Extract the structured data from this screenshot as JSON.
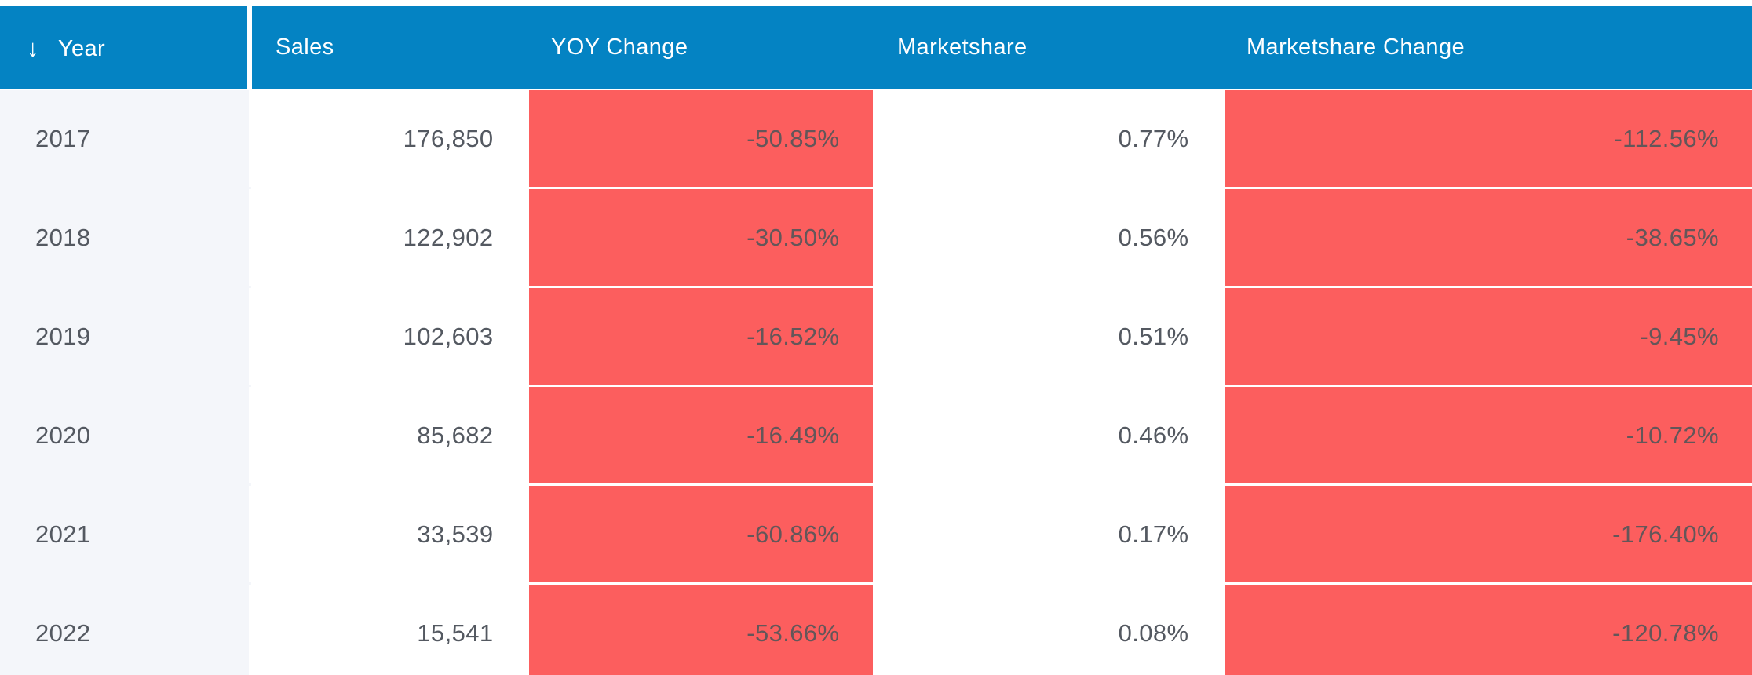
{
  "colors": {
    "header_bg": "#0483c3",
    "header_text": "#ffffff",
    "negative_cell_bg": "#fc5e5e",
    "year_column_bg": "#f4f6fa",
    "body_text": "#545961",
    "bottom_strip": "#e9ebee"
  },
  "table": {
    "sort_icon": "↓",
    "sorted_column": "Year",
    "sort_direction": "descending",
    "columns": [
      {
        "key": "year",
        "label": "Year"
      },
      {
        "key": "sales",
        "label": "Sales"
      },
      {
        "key": "yoy",
        "label": "YOY Change"
      },
      {
        "key": "marketshare",
        "label": "Marketshare"
      },
      {
        "key": "ms_change",
        "label": "Marketshare Change"
      }
    ],
    "rows": [
      {
        "year": "2017",
        "sales": "176,850",
        "yoy": "-50.85%",
        "marketshare": "0.77%",
        "ms_change": "-112.56%"
      },
      {
        "year": "2018",
        "sales": "122,902",
        "yoy": "-30.50%",
        "marketshare": "0.56%",
        "ms_change": "-38.65%"
      },
      {
        "year": "2019",
        "sales": "102,603",
        "yoy": "-16.52%",
        "marketshare": "0.51%",
        "ms_change": "-9.45%"
      },
      {
        "year": "2020",
        "sales": "85,682",
        "yoy": "-16.49%",
        "marketshare": "0.46%",
        "ms_change": "-10.72%"
      },
      {
        "year": "2021",
        "sales": "33,539",
        "yoy": "-60.86%",
        "marketshare": "0.17%",
        "ms_change": "-176.40%"
      },
      {
        "year": "2022",
        "sales": "15,541",
        "yoy": "-53.66%",
        "marketshare": "0.08%",
        "ms_change": "-120.78%"
      }
    ]
  }
}
